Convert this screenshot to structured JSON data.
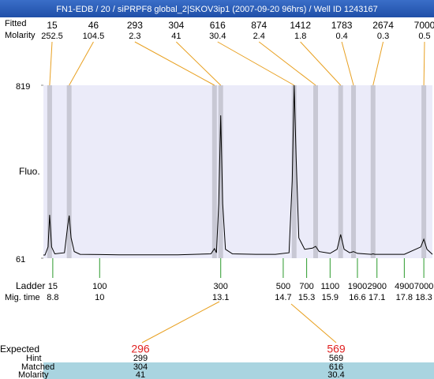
{
  "chart_data": {
    "type": "line",
    "title": "FN1-EDB / 20 / siPRPF8 global_2|SKOV3ip1 (2007-09-20 96hrs) / Well ID 1243167",
    "size_label": "Fitted",
    "molarity_label": "Molarity",
    "y_label": "Fluo.",
    "ylim": [
      61,
      819
    ],
    "yticks": [
      61,
      819
    ],
    "xlim": [
      8.56,
      18.52
    ],
    "peaks": {
      "sizes": [
        15,
        46,
        293,
        304,
        616,
        874,
        1412,
        1783,
        2674,
        7000
      ],
      "molarity": [
        252.5,
        104.5,
        2.3,
        41,
        30.4,
        2.4,
        1.8,
        0.4,
        0.3,
        0.5
      ],
      "time": [
        8.72,
        9.22,
        12.94,
        13.1,
        14.98,
        15.53,
        16.17,
        16.5,
        17.0,
        18.3
      ]
    },
    "ladder": {
      "label": "Ladder",
      "time_label": "Mig. time",
      "sizes": [
        15,
        100,
        300,
        500,
        700,
        1100,
        1900,
        2900,
        4900,
        7000
      ],
      "times": [
        8.8,
        10,
        13.1,
        14.7,
        15.3,
        15.9,
        16.6,
        17.1,
        17.8,
        18.3
      ]
    },
    "trace": {
      "color": "#000000",
      "x": [
        8.56,
        8.6,
        8.68,
        8.72,
        8.77,
        8.85,
        9.1,
        9.18,
        9.22,
        9.27,
        9.35,
        9.5,
        10.5,
        12.0,
        12.85,
        12.94,
        12.99,
        13.05,
        13.1,
        13.15,
        13.22,
        13.4,
        14.0,
        14.5,
        14.85,
        14.93,
        14.98,
        15.03,
        15.1,
        15.25,
        15.45,
        15.53,
        15.62,
        15.9,
        16.08,
        16.17,
        16.26,
        16.4,
        16.5,
        16.6,
        16.95,
        17.0,
        17.05,
        17.8,
        18.22,
        18.3,
        18.38,
        18.52
      ],
      "y": [
        75,
        75,
        110,
        251,
        110,
        80,
        85,
        200,
        248,
        150,
        90,
        78,
        76,
        76,
        80,
        103,
        85,
        300,
        687,
        300,
        100,
        80,
        78,
        78,
        85,
        400,
        819,
        500,
        150,
        100,
        105,
        113,
        90,
        82,
        100,
        165,
        100,
        85,
        90,
        82,
        78,
        80,
        78,
        78,
        110,
        144,
        100,
        78
      ]
    },
    "expected": {
      "labels": [
        "Expected",
        "Hint",
        "Matched",
        "Molarity"
      ],
      "expected": [
        296,
        569
      ],
      "hint": [
        299,
        569
      ],
      "matched": [
        304,
        616
      ],
      "molarity": [
        41,
        30.4
      ]
    }
  }
}
